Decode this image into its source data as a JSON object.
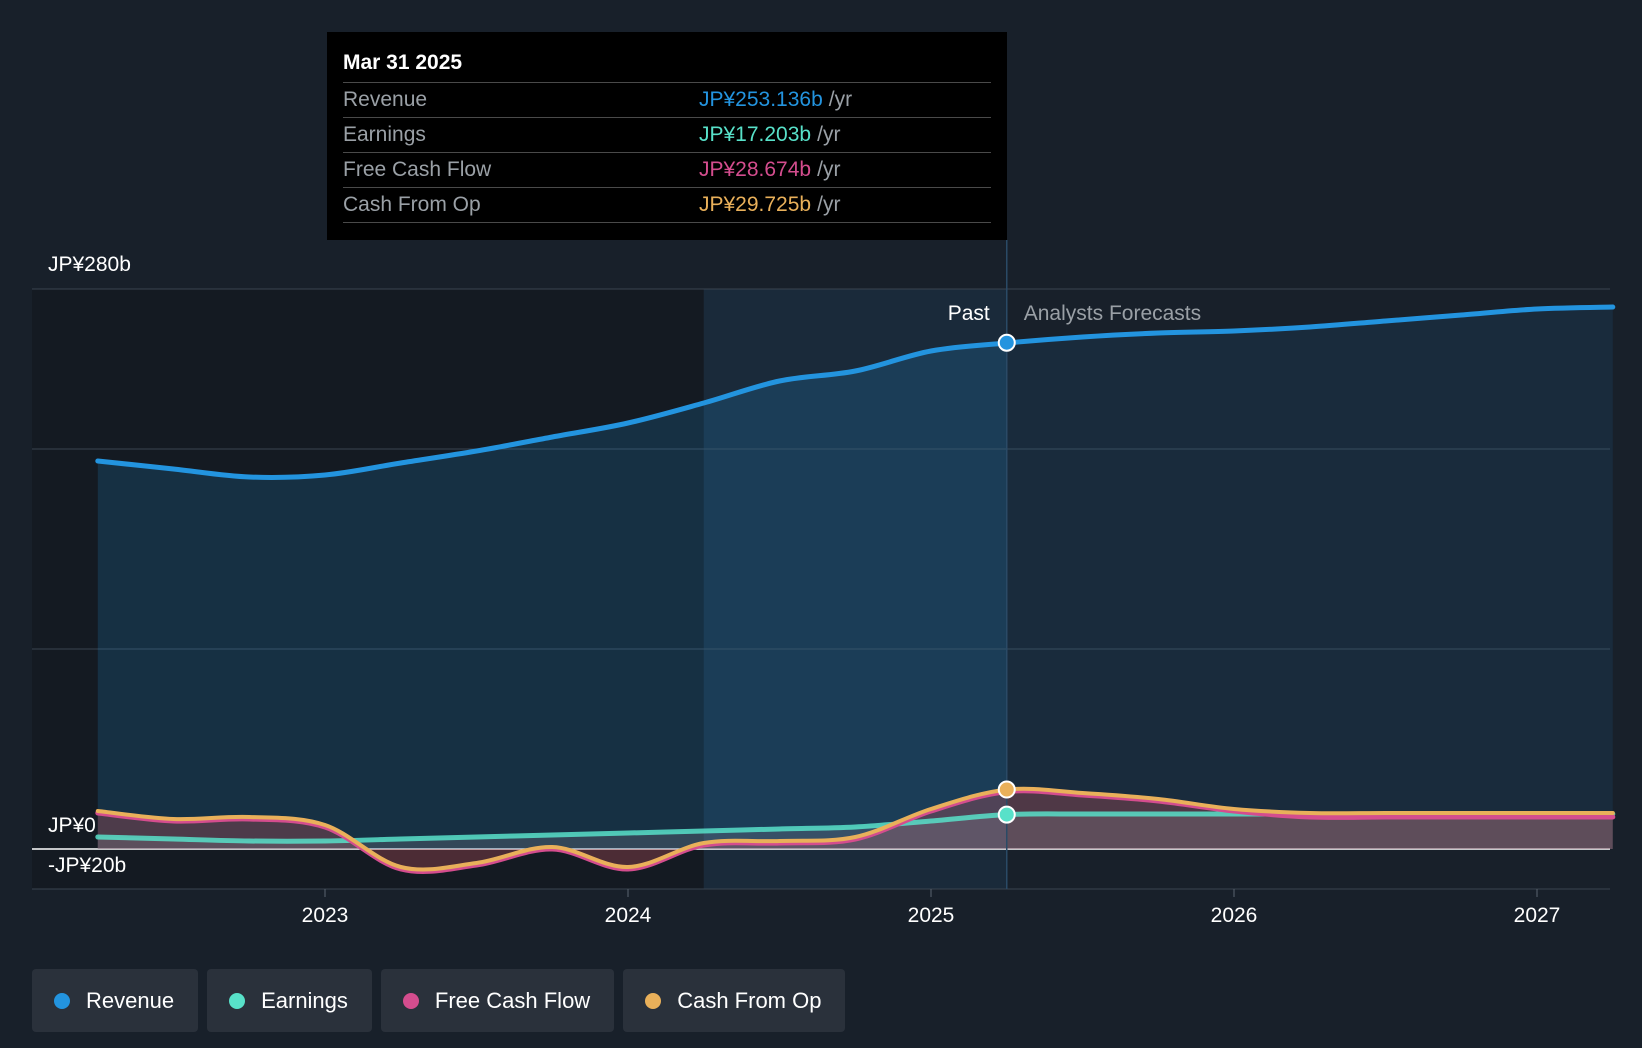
{
  "chart_data": {
    "type": "area",
    "title": "",
    "xlabel": "",
    "ylabel": "",
    "ylim": [
      -20,
      280
    ],
    "xlim": [
      2022.25,
      2027.25
    ],
    "y_tick_labels": [
      {
        "value": 280,
        "label": "JP¥280b"
      },
      {
        "value": 0,
        "label": "JP¥0"
      },
      {
        "value": -20,
        "label": "-JP¥20b"
      }
    ],
    "gridlines": [
      280,
      200,
      100,
      0,
      -20
    ],
    "x_ticks": [
      {
        "value": 2023,
        "label": "2023"
      },
      {
        "value": 2024,
        "label": "2024"
      },
      {
        "value": 2025,
        "label": "2025"
      },
      {
        "value": 2026,
        "label": "2026"
      },
      {
        "value": 2027,
        "label": "2027"
      }
    ],
    "highlight_start": 2024.25,
    "divider_x": 2025.25,
    "past_label": "Past",
    "forecast_label": "Analysts Forecasts",
    "series": [
      {
        "name": "Revenue",
        "color": "#2394df",
        "points": [
          [
            2022.25,
            194
          ],
          [
            2022.5,
            190
          ],
          [
            2022.75,
            186
          ],
          [
            2023.0,
            187
          ],
          [
            2023.25,
            193
          ],
          [
            2023.5,
            199
          ],
          [
            2023.75,
            206
          ],
          [
            2024.0,
            213
          ],
          [
            2024.25,
            223
          ],
          [
            2024.5,
            234
          ],
          [
            2024.75,
            239
          ],
          [
            2025.0,
            249
          ],
          [
            2025.25,
            253
          ],
          [
            2025.5,
            256
          ],
          [
            2025.75,
            258
          ],
          [
            2026.0,
            259
          ],
          [
            2026.25,
            261
          ],
          [
            2026.5,
            264
          ],
          [
            2026.75,
            267
          ],
          [
            2027.0,
            270
          ],
          [
            2027.25,
            271
          ]
        ],
        "marker": [
          2025.25,
          253.136
        ]
      },
      {
        "name": "Earnings",
        "color": "#58e1c9",
        "points": [
          [
            2022.25,
            6
          ],
          [
            2022.5,
            5
          ],
          [
            2022.75,
            4
          ],
          [
            2023.0,
            4
          ],
          [
            2023.25,
            5
          ],
          [
            2023.5,
            6
          ],
          [
            2023.75,
            7
          ],
          [
            2024.0,
            8
          ],
          [
            2024.25,
            9
          ],
          [
            2024.5,
            10
          ],
          [
            2024.75,
            11
          ],
          [
            2025.0,
            14
          ],
          [
            2025.25,
            17.2
          ],
          [
            2025.5,
            17.5
          ],
          [
            2025.75,
            17.5
          ],
          [
            2026.0,
            17.5
          ],
          [
            2026.25,
            17.5
          ],
          [
            2026.5,
            17.5
          ],
          [
            2026.75,
            17.5
          ],
          [
            2027.0,
            17.5
          ],
          [
            2027.25,
            17.5
          ]
        ],
        "marker": [
          2025.25,
          17.203
        ]
      },
      {
        "name": "Free Cash Flow",
        "color": "#d44d8e",
        "points": [
          [
            2022.25,
            18
          ],
          [
            2022.5,
            14
          ],
          [
            2022.75,
            15
          ],
          [
            2023.0,
            11
          ],
          [
            2023.25,
            -10
          ],
          [
            2023.5,
            -8
          ],
          [
            2023.75,
            0
          ],
          [
            2024.0,
            -10
          ],
          [
            2024.25,
            2
          ],
          [
            2024.5,
            3
          ],
          [
            2024.75,
            5
          ],
          [
            2025.0,
            19
          ],
          [
            2025.25,
            28.7
          ],
          [
            2025.5,
            27
          ],
          [
            2025.75,
            24
          ],
          [
            2026.0,
            19
          ],
          [
            2026.25,
            16
          ],
          [
            2026.5,
            16
          ],
          [
            2026.75,
            16
          ],
          [
            2027.0,
            16
          ],
          [
            2027.25,
            16
          ]
        ]
      },
      {
        "name": "Cash From Op",
        "color": "#e9b05a",
        "points": [
          [
            2022.25,
            19
          ],
          [
            2022.5,
            15
          ],
          [
            2022.75,
            16
          ],
          [
            2023.0,
            12
          ],
          [
            2023.25,
            -9
          ],
          [
            2023.5,
            -7
          ],
          [
            2023.75,
            1
          ],
          [
            2024.0,
            -9
          ],
          [
            2024.25,
            3
          ],
          [
            2024.5,
            4
          ],
          [
            2024.75,
            6
          ],
          [
            2025.0,
            20
          ],
          [
            2025.25,
            29.7
          ],
          [
            2025.5,
            28
          ],
          [
            2025.75,
            25
          ],
          [
            2026.0,
            20
          ],
          [
            2026.25,
            18
          ],
          [
            2026.5,
            18
          ],
          [
            2026.75,
            18
          ],
          [
            2027.0,
            18
          ],
          [
            2027.25,
            18
          ]
        ],
        "marker": [
          2025.25,
          29.725
        ]
      }
    ]
  },
  "tooltip": {
    "date": "Mar 31 2025",
    "rows": [
      {
        "label": "Revenue",
        "value": "JP¥253.136b",
        "unit": "/yr",
        "color": "#2394df"
      },
      {
        "label": "Earnings",
        "value": "JP¥17.203b",
        "unit": "/yr",
        "color": "#58e1c9"
      },
      {
        "label": "Free Cash Flow",
        "value": "JP¥28.674b",
        "unit": "/yr",
        "color": "#d44d8e"
      },
      {
        "label": "Cash From Op",
        "value": "JP¥29.725b",
        "unit": "/yr",
        "color": "#e9b05a"
      }
    ]
  },
  "legend": [
    {
      "label": "Revenue",
      "color": "#2394df"
    },
    {
      "label": "Earnings",
      "color": "#58e1c9"
    },
    {
      "label": "Free Cash Flow",
      "color": "#d44d8e"
    },
    {
      "label": "Cash From Op",
      "color": "#e9b05a"
    }
  ]
}
